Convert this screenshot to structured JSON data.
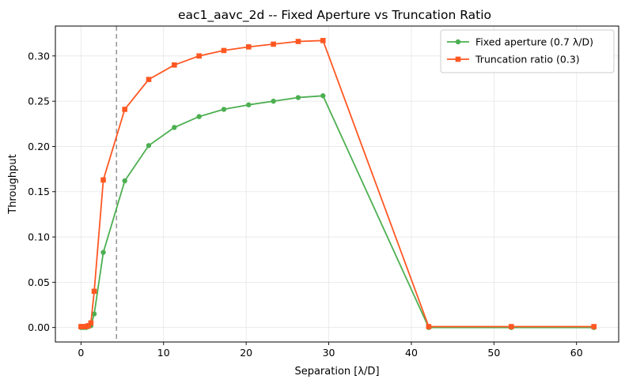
{
  "chart_data": {
    "type": "line",
    "title": "eac1_aavc_2d -- Fixed Aperture vs Truncation Ratio",
    "xlabel": "Separation [λ/D]",
    "ylabel": "Throughput",
    "xlim": [
      -3.1,
      65.1
    ],
    "ylim": [
      -0.016,
      0.333
    ],
    "xticks": [
      0,
      10,
      20,
      30,
      40,
      50,
      60
    ],
    "yticks": [
      0.0,
      0.05,
      0.1,
      0.15,
      0.2,
      0.25,
      0.3
    ],
    "xtick_labels": [
      "0",
      "10",
      "20",
      "30",
      "40",
      "50",
      "60"
    ],
    "ytick_labels": [
      "0.00",
      "0.05",
      "0.10",
      "0.15",
      "0.20",
      "0.25",
      "0.30"
    ],
    "grid": true,
    "legend_position": "top-right",
    "vline": {
      "x": 4.3,
      "style": "dashed",
      "color": "#999999"
    },
    "series": [
      {
        "name": "Fixed aperture (0.7 λ/D)",
        "color": "#4caf50",
        "marker": "circle",
        "x": [
          0.0,
          0.3,
          0.6,
          0.9,
          1.2,
          1.6,
          2.7,
          5.3,
          8.2,
          11.3,
          14.3,
          17.3,
          20.3,
          23.3,
          26.3,
          29.3,
          42.1,
          52.1,
          62.1
        ],
        "y": [
          0.0,
          0.0,
          0.0,
          0.001,
          0.002,
          0.015,
          0.083,
          0.162,
          0.201,
          0.221,
          0.233,
          0.241,
          0.246,
          0.25,
          0.254,
          0.256,
          0.0,
          0.0,
          0.0
        ]
      },
      {
        "name": "Truncation ratio (0.3)",
        "color": "#ff5722",
        "marker": "square",
        "x": [
          0.0,
          0.3,
          0.6,
          0.9,
          1.2,
          1.6,
          2.7,
          5.3,
          8.2,
          11.3,
          14.3,
          17.3,
          20.3,
          23.3,
          26.3,
          29.3,
          42.1,
          52.1,
          62.1
        ],
        "y": [
          0.001,
          0.001,
          0.001,
          0.002,
          0.005,
          0.04,
          0.163,
          0.241,
          0.274,
          0.29,
          0.3,
          0.306,
          0.31,
          0.313,
          0.316,
          0.317,
          0.001,
          0.001,
          0.001
        ]
      }
    ]
  }
}
